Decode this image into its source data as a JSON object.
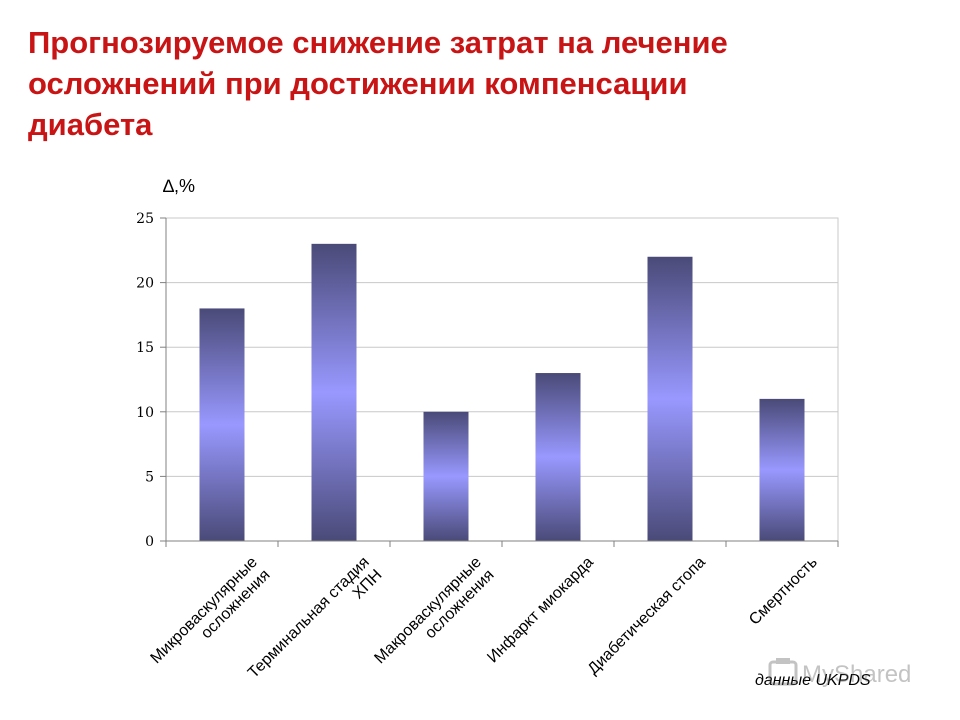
{
  "title_lines": [
    "Прогнозируемое снижение затрат на лечение",
    "осложнений при достижении компенсации",
    "диабета"
  ],
  "source_note": "данные UKPDS",
  "watermark_text": "MyShared",
  "colors": {
    "title": "#c81414",
    "bar_edge": "#4a4a78",
    "bar_center": "#9898ff",
    "grid": "#c8c8c8",
    "axis": "#808080"
  },
  "chart_data": {
    "type": "bar",
    "ylabel": "∆,%",
    "xlabel": "",
    "title": "",
    "categories": [
      [
        "Микроваскулярные",
        "осложнения"
      ],
      [
        "Терминальная стадия",
        "ХПН"
      ],
      [
        "Макроваскулярные",
        "осложнения"
      ],
      [
        "Инфаркт миокарда"
      ],
      [
        "Диабетическая стопа"
      ],
      [
        "Смертность"
      ]
    ],
    "values": [
      18,
      23,
      10,
      13,
      22,
      11
    ],
    "ylim": [
      0,
      25
    ],
    "yticks": [
      0,
      5,
      10,
      15,
      20,
      25
    ],
    "grid": true,
    "legend": false
  }
}
